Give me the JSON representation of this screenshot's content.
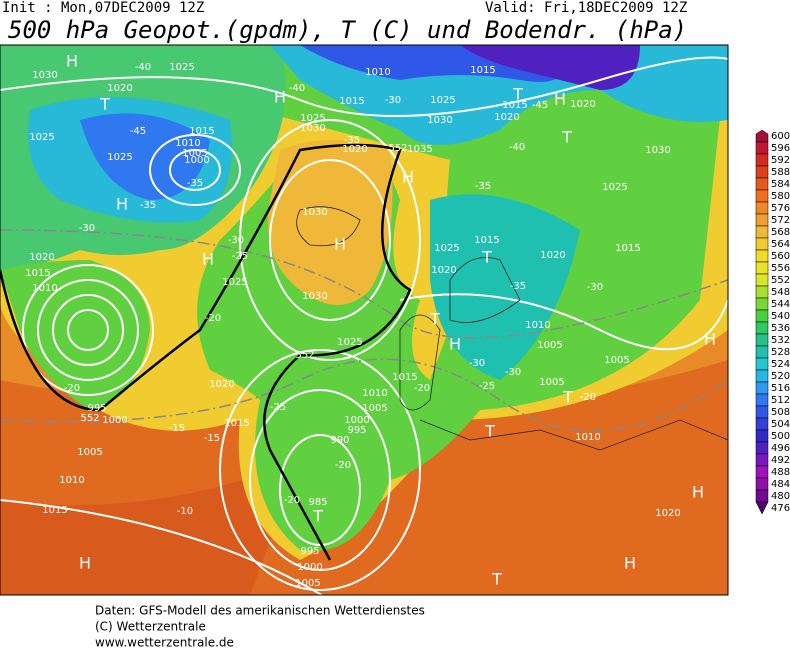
{
  "header": {
    "init": "Init : Mon,07DEC2009 12Z",
    "valid": "Valid: Fri,18DEC2009 12Z",
    "title": "500 hPa Geopot.(gpdm), T (C) und Bodendr. (hPa)"
  },
  "footer": {
    "lines": [
      "Daten: GFS-Modell des amerikanischen Wetterdienstes",
      "(C) Wetterzentrale",
      "www.wetterzentrale.de"
    ]
  },
  "colorbar": {
    "ticks": [
      600,
      596,
      592,
      588,
      584,
      580,
      576,
      572,
      568,
      564,
      560,
      556,
      552,
      548,
      544,
      540,
      536,
      532,
      528,
      524,
      520,
      516,
      512,
      508,
      504,
      500,
      496,
      492,
      488,
      484,
      480,
      476
    ],
    "colors": [
      "#a0103a",
      "#c01830",
      "#d82a20",
      "#e04018",
      "#e85818",
      "#f07020",
      "#f08828",
      "#f0a030",
      "#f0b838",
      "#f0cc30",
      "#f0dc28",
      "#e8e428",
      "#d8e828",
      "#a8e030",
      "#78d838",
      "#48d040",
      "#30c860",
      "#28c088",
      "#20c0b0",
      "#20c8d0",
      "#28b8e8",
      "#3098f0",
      "#3078f0",
      "#3058e8",
      "#3040d8",
      "#3028c8",
      "#5020c0",
      "#7818c0",
      "#a010c0",
      "#9010a8",
      "#700890",
      "#500070"
    ]
  },
  "map_labels": {
    "big": [
      "H",
      "H",
      "T",
      "H",
      "T",
      "H",
      "T",
      "T",
      "H",
      "T",
      "T",
      "H",
      "H",
      "H",
      "H",
      "T",
      "H",
      "T",
      "H",
      "T",
      "H"
    ],
    "small": [
      "1030",
      "1025",
      "1020",
      "1025",
      "1025",
      "1015",
      "1010",
      "1005",
      "1000",
      "1030",
      "1025",
      "1025",
      "1030",
      "1035",
      "1020",
      "1015",
      "1010",
      "1015",
      "1015",
      "1020",
      "1020",
      "1030",
      "1025",
      "1030",
      "1030",
      "1025",
      "1020",
      "1015",
      "1025",
      "1020",
      "1015",
      "1010",
      "995",
      "1000",
      "1005",
      "1010",
      "1015",
      "1010",
      "1005",
      "1000",
      "995",
      "990",
      "985",
      "995",
      "1000",
      "1005",
      "1015",
      "1025",
      "1020",
      "1015",
      "1020",
      "1015",
      "1010",
      "1005",
      "1005",
      "1005",
      "1010",
      "1020",
      "-40",
      "-45",
      "-35",
      "-35",
      "-30",
      "-30",
      "-25",
      "-20",
      "-20",
      "-15",
      "-15",
      "-10",
      "-20",
      "-20",
      "-25",
      "-20",
      "-25",
      "-30",
      "-30",
      "-35",
      "-30",
      "-20",
      "-35",
      "-40",
      "-45",
      "-30",
      "-40",
      "-35",
      "552",
      "552",
      "552"
    ]
  }
}
